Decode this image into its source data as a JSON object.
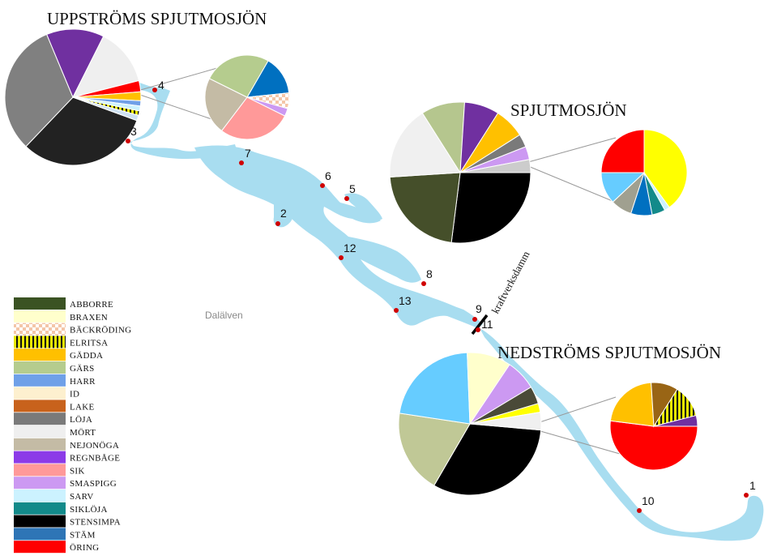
{
  "titles": {
    "upstream": "UPPSTRÖMS SPJUTMOSJÖN",
    "lake": "SPJUTMOSJÖN",
    "downstream": "NEDSTRÖMS SPJUTMOSJÖN"
  },
  "labels": {
    "river": "Dalälven",
    "dam": "kraftverksdamm"
  },
  "sites": [
    "1",
    "2",
    "3",
    "4",
    "5",
    "6",
    "7",
    "8",
    "9",
    "10",
    "11",
    "12",
    "13"
  ],
  "legend": [
    {
      "name": "ABBORRE",
      "color": "#3b5323"
    },
    {
      "name": "BRAXEN",
      "color": "#ffffcc"
    },
    {
      "name": "BÄCKRÖDING",
      "color": "#f4cdb0",
      "pattern": "checker"
    },
    {
      "name": "ELRITSA",
      "color": "#e6e600",
      "pattern": "stripes"
    },
    {
      "name": "GÄDDA",
      "color": "#ffc000"
    },
    {
      "name": "GÄRS",
      "color": "#b5cc8e"
    },
    {
      "name": "HARR",
      "color": "#6fa0e8"
    },
    {
      "name": "ID",
      "color": "#fdf0cf"
    },
    {
      "name": "LAKE",
      "color": "#c8621c"
    },
    {
      "name": "LÖJA",
      "color": "#7a7a7a"
    },
    {
      "name": "MÖRT",
      "color": "#efefef"
    },
    {
      "name": "NEJONÖGA",
      "color": "#c4bba5"
    },
    {
      "name": "REGNBÅGE",
      "color": "#8c3be8"
    },
    {
      "name": "SIK",
      "color": "#ff9999"
    },
    {
      "name": "SMASPIGG",
      "color": "#cc99f2"
    },
    {
      "name": "SARV",
      "color": "#ccf2ff"
    },
    {
      "name": "SIKLÖJA",
      "color": "#138a8a"
    },
    {
      "name": "STENSIMPA",
      "color": "#000000"
    },
    {
      "name": "STÄM",
      "color": "#2e75b6"
    },
    {
      "name": "ÖRING",
      "color": "#ff0000"
    }
  ],
  "pies": {
    "upstream_main": [
      {
        "species": "STENSIMPA",
        "value": 30,
        "color": "#222222"
      },
      {
        "species": "LÖJA",
        "value": 30,
        "color": "#808080"
      },
      {
        "species": "REGNBÅGE",
        "value": 13,
        "color": "#7030a0"
      },
      {
        "species": "MÖRT",
        "value": 13,
        "color": "#efefef"
      },
      {
        "species": "ÖRING",
        "value": 2.5,
        "color": "#ff0000"
      },
      {
        "species": "GÄDDA",
        "value": 2,
        "color": "#ffc000"
      },
      {
        "species": "HARR",
        "value": 1.2,
        "color": "#6fa0e8"
      },
      {
        "species": "SARV",
        "value": 1.1,
        "color": "#ccf2ff"
      },
      {
        "species": "ELRITSA",
        "value": 1,
        "color": "#e6e600"
      },
      {
        "species": "other",
        "value": 1.2,
        "color": "#cfe2f3"
      }
    ],
    "upstream_detail": [
      {
        "species": "STÄM",
        "value": 15,
        "color": "#0070c0"
      },
      {
        "species": "BÄCKRÖDING",
        "value": 6,
        "color": "#f4cdb0"
      },
      {
        "species": "SMASPIGG",
        "value": 3,
        "color": "#cc99f2"
      },
      {
        "species": "SIK",
        "value": 28,
        "color": "#ff9999"
      },
      {
        "species": "NEJONÖGA",
        "value": 22,
        "color": "#c4bba5"
      },
      {
        "species": "GÄRS",
        "value": 26,
        "color": "#b5cc8e"
      }
    ],
    "lake_main": [
      {
        "species": "STENSIMPA",
        "value": 27,
        "color": "#000000"
      },
      {
        "species": "ABBORRE",
        "value": 22,
        "color": "#454f2a"
      },
      {
        "species": "MÖRT",
        "value": 17,
        "color": "#f0f0f0"
      },
      {
        "species": "GÄRS",
        "value": 10,
        "color": "#b5c68e"
      },
      {
        "species": "REGNBÅGE",
        "value": 8,
        "color": "#7030a0"
      },
      {
        "species": "GÄDDA",
        "value": 7,
        "color": "#ffc000"
      },
      {
        "species": "LÖJA",
        "value": 3,
        "color": "#7a7a7a"
      },
      {
        "species": "SMASPIGG",
        "value": 3,
        "color": "#cc99f2"
      },
      {
        "species": "other",
        "value": 3,
        "color": "#cccccc"
      }
    ],
    "lake_detail": [
      {
        "species": "ÖRING",
        "value": 25,
        "color": "#ff0000"
      },
      {
        "species": "BRAXEN",
        "value": 40,
        "color": "#ffff00"
      },
      {
        "species": "SARV",
        "value": 2,
        "color": "#ccf2ff"
      },
      {
        "species": "SIKLÖJA",
        "value": 5,
        "color": "#138a8a"
      },
      {
        "species": "STÄM",
        "value": 8,
        "color": "#0070c0"
      },
      {
        "species": "LÖJA",
        "value": 8,
        "color": "#a0a090"
      },
      {
        "species": "HARR",
        "value": 12,
        "color": "#66ccff"
      }
    ],
    "downstream_main": [
      {
        "species": "STENSIMPA",
        "value": 32,
        "color": "#000000"
      },
      {
        "species": "GÄRS",
        "value": 19,
        "color": "#c0c896"
      },
      {
        "species": "HARR",
        "value": 22,
        "color": "#66ccff"
      },
      {
        "species": "BRAXEN",
        "value": 10,
        "color": "#ffffcc"
      },
      {
        "species": "SMASPIGG",
        "value": 7,
        "color": "#cc99f2"
      },
      {
        "species": "ABBORRE",
        "value": 4,
        "color": "#4a4a38"
      },
      {
        "species": "GÄDDA",
        "value": 2,
        "color": "#ffff00"
      },
      {
        "species": "other",
        "value": 4,
        "color": "#f0f0f0"
      }
    ],
    "downstream_detail": [
      {
        "species": "ÖRING",
        "value": 52,
        "color": "#ff0000"
      },
      {
        "species": "GÄDDA",
        "value": 22,
        "color": "#ffc000"
      },
      {
        "species": "LAKE",
        "value": 10,
        "color": "#996515"
      },
      {
        "species": "ELRITSA",
        "value": 12,
        "color": "#e6e600"
      },
      {
        "species": "REGNBÅGE",
        "value": 4,
        "color": "#7030a0"
      }
    ]
  }
}
